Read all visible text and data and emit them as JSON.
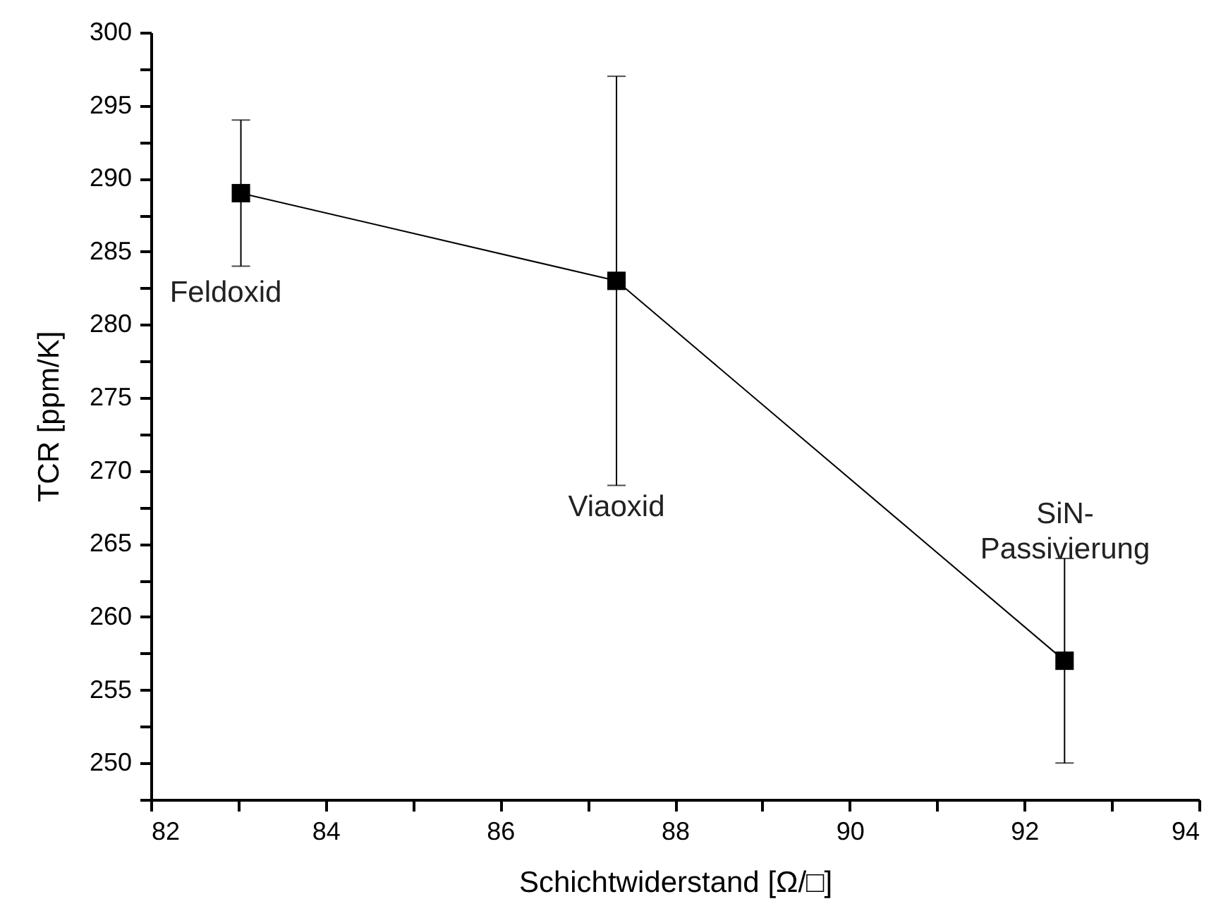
{
  "chart_data": {
    "type": "line",
    "xlabel": "Schichtwiderstand [Ω/□]",
    "ylabel": "TCR [ppm/K]",
    "x": [
      83.03,
      87.33,
      92.46
    ],
    "series": [
      {
        "color": "#000000",
        "values": [
          289,
          283,
          257
        ],
        "errors": [
          5,
          14,
          7
        ]
      }
    ],
    "marker": "square",
    "line_style": "solid",
    "grid": false,
    "xlim": [
      82,
      94
    ],
    "xticks": [
      82,
      {
        "value": 83,
        "label": null
      },
      84,
      {
        "value": 85,
        "label": null
      },
      86,
      {
        "value": 87,
        "label": null
      },
      88,
      {
        "value": 89,
        "label": null
      },
      90,
      {
        "value": 91,
        "label": null
      },
      92,
      {
        "value": 93,
        "label": null
      },
      94
    ],
    "ylim": [
      247.5,
      300
    ],
    "yticks": [
      {
        "value": 247.5,
        "label": null
      },
      250,
      {
        "value": 252.5,
        "label": null
      },
      255,
      {
        "value": 257.5,
        "label": null
      },
      260,
      {
        "value": 262.5,
        "label": null
      },
      265,
      {
        "value": 267.5,
        "label": null
      },
      270,
      {
        "value": 272.5,
        "label": null
      },
      275,
      {
        "value": 277.5,
        "label": null
      },
      280,
      {
        "value": 282.5,
        "label": null
      },
      285,
      {
        "value": 287.5,
        "label": null
      },
      290,
      {
        "value": 292.5,
        "label": null
      },
      295,
      {
        "value": 297.5,
        "label": null
      },
      300
    ],
    "annotations": [
      "Feldoxid",
      "Viaoxid",
      "SiN-\nPassivierung"
    ]
  }
}
